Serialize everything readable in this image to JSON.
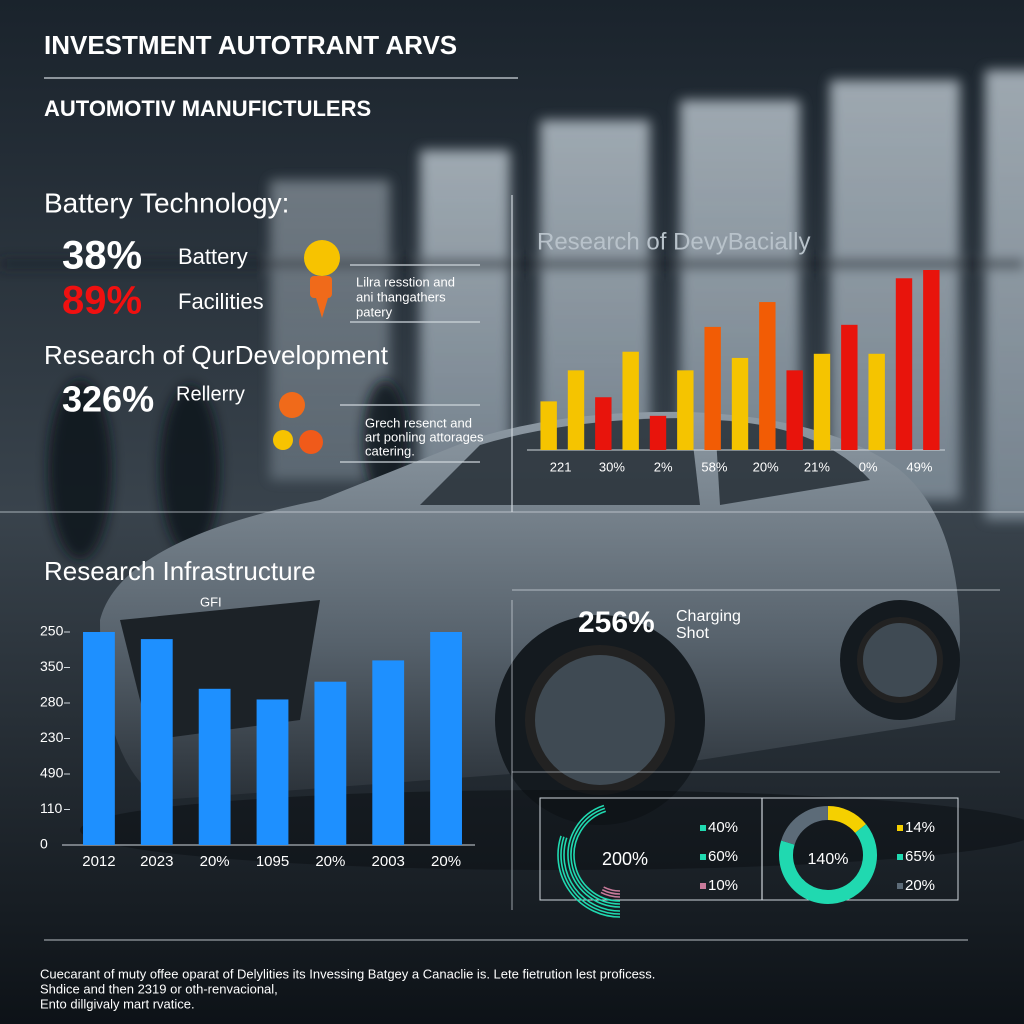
{
  "header": {
    "title": "INVESTMENT AUTOTRANT ARVS",
    "subtitle": "AUTOMOTIV MANUFICTULERS"
  },
  "battery": {
    "heading": "Battery Technology:",
    "stats": [
      {
        "figure": "38%",
        "label": "Battery"
      },
      {
        "figure": "89%",
        "label": "Facilities"
      }
    ],
    "note": [
      "Lilra resstion and",
      "ani thangathers",
      "patery"
    ]
  },
  "research": {
    "heading": "Research of QurDevelopment",
    "stat": {
      "figure": "326%",
      "label": "Rellerry"
    },
    "note": [
      "Grech resenct and",
      "art ponling attorages",
      "catering."
    ]
  },
  "infrastructure": {
    "heading": "Research Infrastructure",
    "tag": "GFI"
  },
  "charging": {
    "figure": "256%",
    "label": [
      "Charging",
      "Shot"
    ]
  },
  "chart_data": [
    {
      "type": "bar",
      "categories": [
        "2012",
        "2023",
        "20%",
        "1095",
        "20%",
        "2003",
        "20%"
      ],
      "values": [
        6.0,
        5.8,
        4.4,
        4.1,
        4.6,
        5.2,
        6.0
      ],
      "color": "#1e90ff",
      "ylim": [
        0,
        6
      ],
      "yticks": [
        0,
        {
          "value": 1,
          "label": "110"
        },
        {
          "value": 2,
          "label": "490"
        },
        {
          "value": 3,
          "label": "230"
        },
        {
          "value": 4,
          "label": "280"
        },
        {
          "value": 5,
          "label": "350"
        },
        {
          "value": 6,
          "label": "250"
        }
      ]
    },
    {
      "type": "bar",
      "title": "Research of DevyBacially",
      "values": [
        47,
        77,
        51,
        95,
        33,
        77,
        119,
        89,
        143,
        77,
        93,
        121,
        93,
        166,
        174
      ],
      "colors": [
        "#f5c400",
        "#f5c400",
        "#e8140c",
        "#f5c400",
        "#e8140c",
        "#f5c400",
        "#f25c05",
        "#f5c400",
        "#f25c05",
        "#e8140c",
        "#f5c400",
        "#e8140c",
        "#f5c400",
        "#e8140c",
        "#e8140c"
      ],
      "x_labels": [
        "221",
        "30%",
        "2%",
        "58%",
        "20%",
        "21%",
        "0%",
        "49%"
      ]
    },
    {
      "type": "gauge",
      "center_label": "200%",
      "values": [
        40,
        60,
        10
      ],
      "value_labels": [
        "40%",
        "60%",
        "10%"
      ],
      "colors": [
        "#20d9b0",
        "#20d9b0",
        "#c87a9a"
      ]
    },
    {
      "type": "donut",
      "center_label": "140%",
      "values": [
        14,
        65,
        20
      ],
      "value_labels": [
        "14%",
        "65%",
        "20%"
      ],
      "colors": [
        "#f5d000",
        "#20d9b0",
        "#5c6b78"
      ]
    }
  ],
  "footnotes": [
    "Cuecarant of muty offee oparat of Delylities its Invessing Batgey a Canaclie is. Lete fietrution lest proficess.",
    "Shdice and then 2319 or oth-renvacional,",
    "Ento dillgivaly mart rvatice."
  ]
}
